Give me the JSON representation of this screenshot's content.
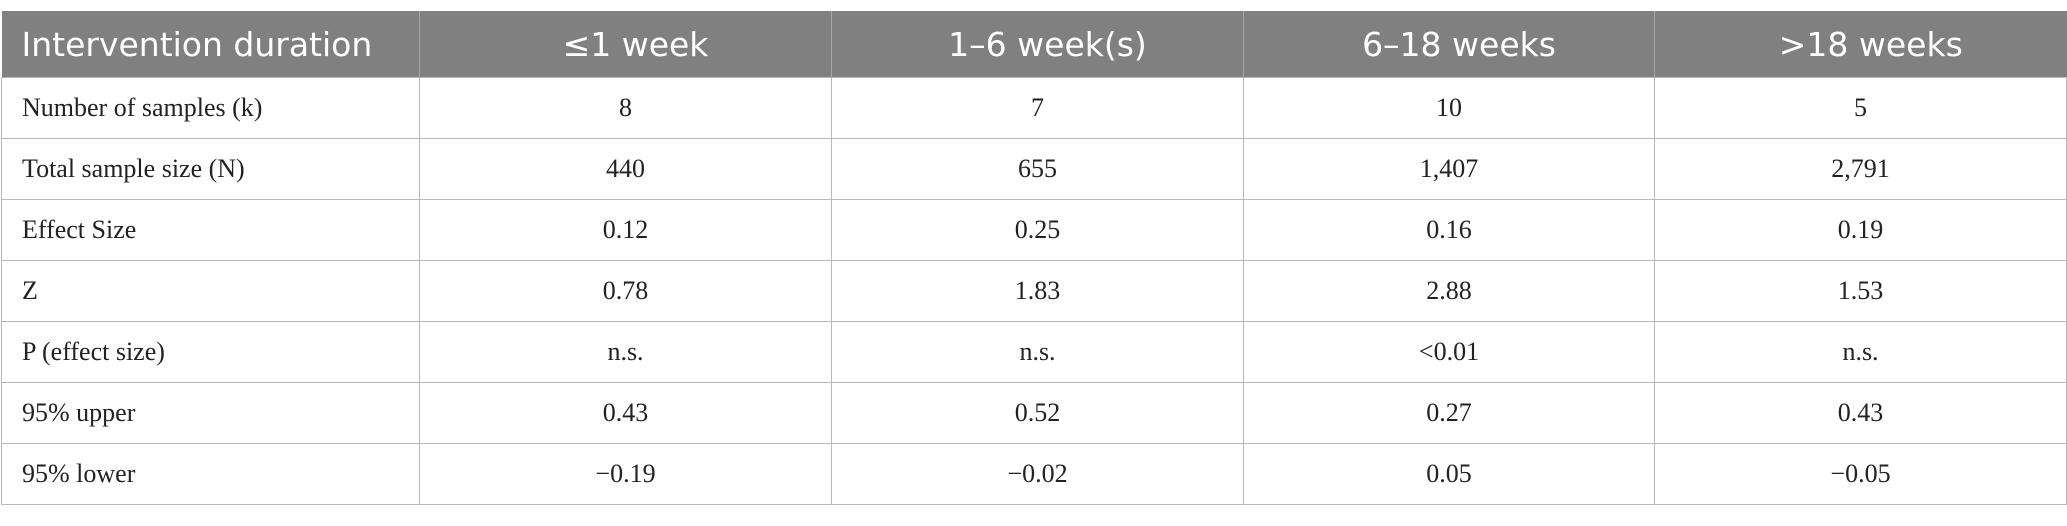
{
  "table": {
    "header": [
      "Intervention duration",
      "≤1 week",
      "1–6 week(s)",
      "6–18 weeks",
      ">18 weeks"
    ],
    "rows": [
      [
        "Number of samples (k)",
        "8",
        "7",
        "10",
        "5"
      ],
      [
        "Total sample size (N)",
        "440",
        "655",
        "1,407",
        "2,791"
      ],
      [
        "Effect Size",
        "0.12",
        "0.25",
        "0.16",
        "0.19"
      ],
      [
        "Z",
        "0.78",
        "1.83",
        "2.88",
        "1.53"
      ],
      [
        "P (effect size)",
        "n.s.",
        "n.s.",
        "<0.01",
        "n.s."
      ],
      [
        "95% upper",
        "0.43",
        "0.52",
        "0.27",
        "0.43"
      ],
      [
        "95% lower",
        "−0.19",
        "−0.02",
        "0.05",
        "−0.05"
      ]
    ]
  }
}
